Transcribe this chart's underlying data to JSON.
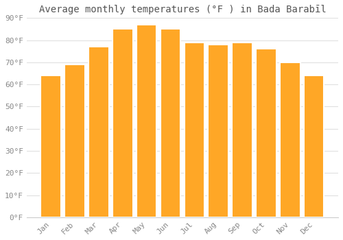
{
  "title": "Average monthly temperatures (°F ) in Bada Barabīl",
  "months": [
    "Jan",
    "Feb",
    "Mar",
    "Apr",
    "May",
    "Jun",
    "Jul",
    "Aug",
    "Sep",
    "Oct",
    "Nov",
    "Dec"
  ],
  "values": [
    64,
    69,
    77,
    85,
    87,
    85,
    79,
    78,
    79,
    76,
    70,
    64
  ],
  "bar_color": "#FFA726",
  "bar_edge_color": "#ffffff",
  "ylim": [
    0,
    90
  ],
  "yticks": [
    0,
    10,
    20,
    30,
    40,
    50,
    60,
    70,
    80,
    90
  ],
  "ytick_labels": [
    "0°F",
    "10°F",
    "20°F",
    "30°F",
    "40°F",
    "50°F",
    "60°F",
    "70°F",
    "80°F",
    "90°F"
  ],
  "background_color": "#ffffff",
  "grid_color": "#e0e0e0",
  "title_fontsize": 10,
  "tick_fontsize": 8,
  "bar_width": 0.85
}
